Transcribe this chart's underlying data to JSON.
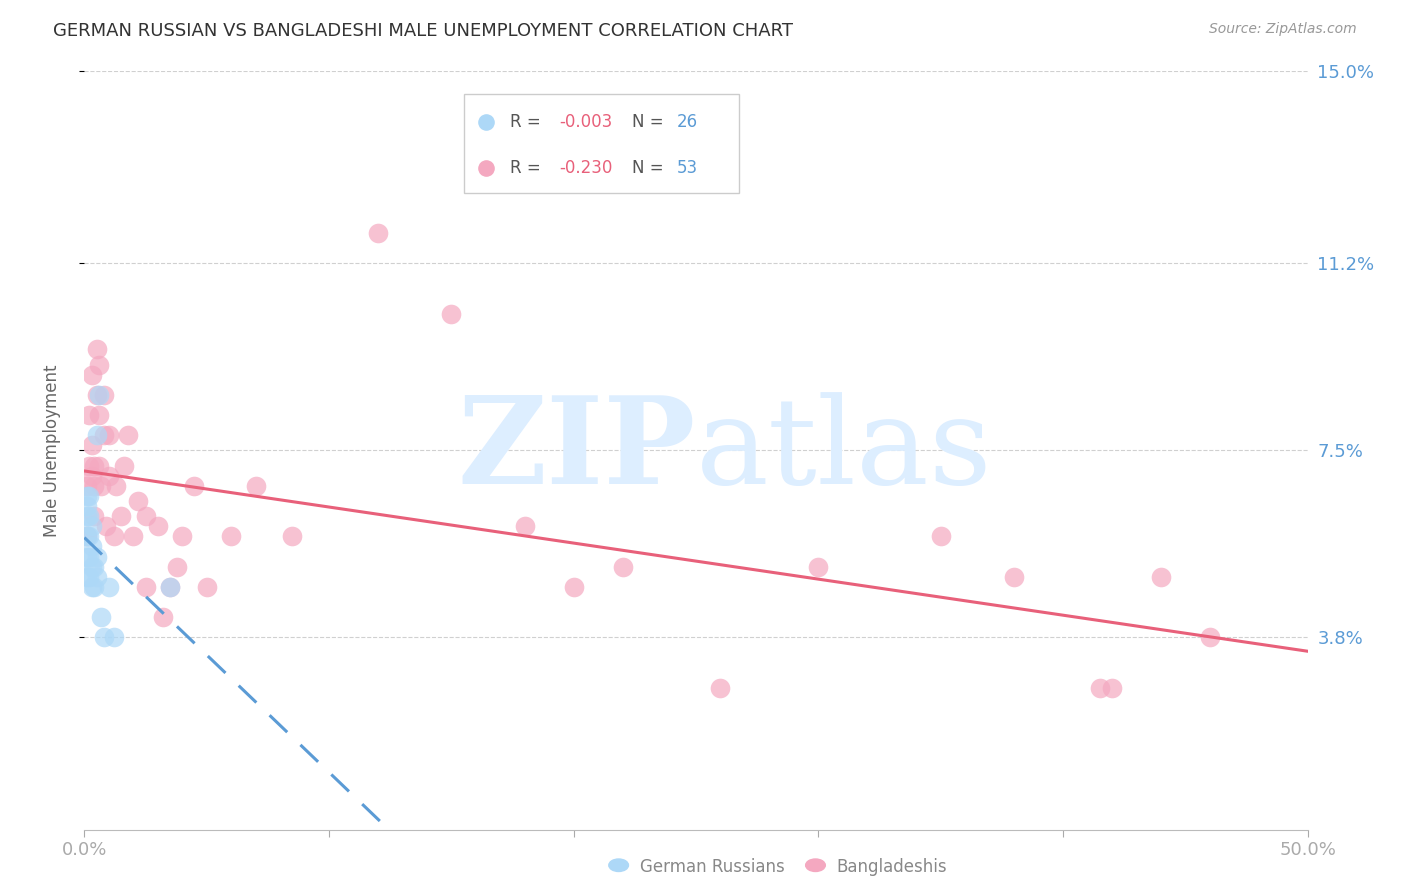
{
  "title": "GERMAN RUSSIAN VS BANGLADESHI MALE UNEMPLOYMENT CORRELATION CHART",
  "source": "Source: ZipAtlas.com",
  "ylabel": "Male Unemployment",
  "xlim": [
    0.0,
    0.5
  ],
  "ylim": [
    0.0,
    0.15
  ],
  "ytick_vals": [
    0.038,
    0.075,
    0.112,
    0.15
  ],
  "ytick_labels": [
    "3.8%",
    "7.5%",
    "11.2%",
    "15.0%"
  ],
  "xticks": [
    0.0,
    0.1,
    0.2,
    0.3,
    0.4,
    0.5
  ],
  "xtick_labels": [
    "0.0%",
    "",
    "",
    "",
    "",
    "50.0%"
  ],
  "color_german": "#add8f7",
  "color_bangladeshi": "#f4a8c0",
  "color_german_line": "#5b9bd5",
  "color_bangladeshi_line": "#e8607a",
  "color_axis_labels": "#5b9bd5",
  "color_grid": "#d0d0d0",
  "watermark_zip": "ZIP",
  "watermark_atlas": "atlas",
  "watermark_color": "#ddeeff",
  "legend_r1": "-0.003",
  "legend_n1": "26",
  "legend_r2": "-0.230",
  "legend_n2": "53",
  "german_x": [
    0.001,
    0.001,
    0.001,
    0.001,
    0.001,
    0.001,
    0.002,
    0.002,
    0.002,
    0.002,
    0.002,
    0.003,
    0.003,
    0.003,
    0.003,
    0.004,
    0.004,
    0.005,
    0.005,
    0.005,
    0.006,
    0.007,
    0.008,
    0.01,
    0.012,
    0.035
  ],
  "german_y": [
    0.05,
    0.054,
    0.058,
    0.062,
    0.064,
    0.066,
    0.05,
    0.054,
    0.058,
    0.062,
    0.066,
    0.048,
    0.052,
    0.056,
    0.06,
    0.048,
    0.052,
    0.05,
    0.054,
    0.078,
    0.086,
    0.042,
    0.038,
    0.048,
    0.038,
    0.048
  ],
  "bangladeshi_x": [
    0.001,
    0.001,
    0.002,
    0.002,
    0.003,
    0.003,
    0.003,
    0.004,
    0.004,
    0.004,
    0.005,
    0.005,
    0.006,
    0.006,
    0.006,
    0.007,
    0.008,
    0.008,
    0.009,
    0.01,
    0.01,
    0.012,
    0.013,
    0.015,
    0.016,
    0.018,
    0.02,
    0.022,
    0.025,
    0.025,
    0.03,
    0.032,
    0.035,
    0.038,
    0.04,
    0.045,
    0.05,
    0.06,
    0.07,
    0.085,
    0.12,
    0.15,
    0.18,
    0.2,
    0.22,
    0.26,
    0.3,
    0.35,
    0.38,
    0.415,
    0.42,
    0.44,
    0.46
  ],
  "bangladeshi_y": [
    0.068,
    0.058,
    0.072,
    0.082,
    0.07,
    0.076,
    0.09,
    0.072,
    0.068,
    0.062,
    0.086,
    0.095,
    0.072,
    0.082,
    0.092,
    0.068,
    0.078,
    0.086,
    0.06,
    0.07,
    0.078,
    0.058,
    0.068,
    0.062,
    0.072,
    0.078,
    0.058,
    0.065,
    0.048,
    0.062,
    0.06,
    0.042,
    0.048,
    0.052,
    0.058,
    0.068,
    0.048,
    0.058,
    0.068,
    0.058,
    0.118,
    0.102,
    0.06,
    0.048,
    0.052,
    0.028,
    0.052,
    0.058,
    0.05,
    0.028,
    0.028,
    0.05,
    0.038
  ]
}
